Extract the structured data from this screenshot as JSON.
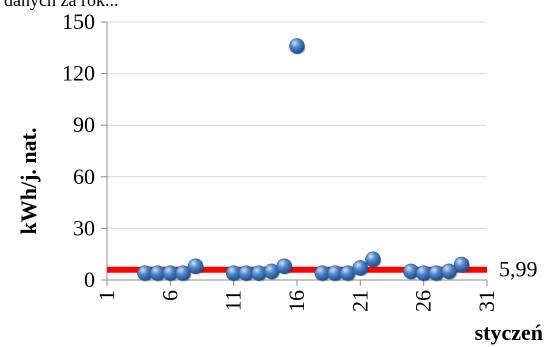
{
  "header_fragment": "danych za rok...",
  "chart_data": {
    "type": "scatter",
    "title": "",
    "xlabel": "styczeń",
    "ylabel": "kWh/j. nat.",
    "xlim": [
      1,
      31
    ],
    "ylim": [
      0,
      150
    ],
    "x_ticks": [
      "1",
      "6",
      "11",
      "16",
      "21",
      "26",
      "31"
    ],
    "y_ticks": [
      "0",
      "30",
      "60",
      "90",
      "120",
      "150"
    ],
    "grid": true,
    "points": [
      {
        "x": 4,
        "y": 4
      },
      {
        "x": 5,
        "y": 4
      },
      {
        "x": 6,
        "y": 4
      },
      {
        "x": 7,
        "y": 4
      },
      {
        "x": 8,
        "y": 8
      },
      {
        "x": 11,
        "y": 4
      },
      {
        "x": 12,
        "y": 4
      },
      {
        "x": 13,
        "y": 4
      },
      {
        "x": 14,
        "y": 5
      },
      {
        "x": 15,
        "y": 8
      },
      {
        "x": 16,
        "y": 136
      },
      {
        "x": 18,
        "y": 4
      },
      {
        "x": 19,
        "y": 4
      },
      {
        "x": 20,
        "y": 4
      },
      {
        "x": 21,
        "y": 7
      },
      {
        "x": 22,
        "y": 12
      },
      {
        "x": 25,
        "y": 5
      },
      {
        "x": 26,
        "y": 4
      },
      {
        "x": 27,
        "y": 4
      },
      {
        "x": 28,
        "y": 5
      },
      {
        "x": 29,
        "y": 9
      }
    ],
    "reference_line": {
      "value": 5.99,
      "label": "5,99",
      "color": "#ff0000"
    },
    "marker_color": "#3a6fb0"
  }
}
